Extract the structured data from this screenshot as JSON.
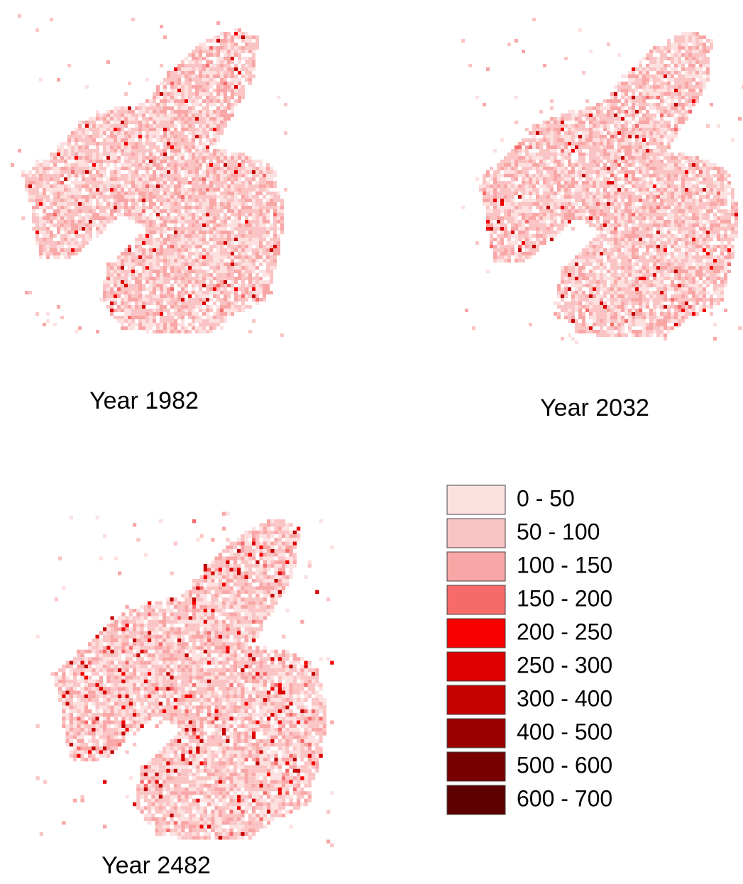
{
  "panels": [
    {
      "caption": "Year 1982"
    },
    {
      "caption": "Year 2032"
    },
    {
      "caption": "Year 2482"
    }
  ],
  "legend": [
    {
      "label": "0 - 50",
      "color": "#fde0e0"
    },
    {
      "label": "50 - 100",
      "color": "#fbc4c4"
    },
    {
      "label": "100 - 150",
      "color": "#f9a6a6"
    },
    {
      "label": "150 - 200",
      "color": "#f76a6a"
    },
    {
      "label": "200 - 250",
      "color": "#f80000"
    },
    {
      "label": "250 - 300",
      "color": "#de0000"
    },
    {
      "label": "300 - 400",
      "color": "#c40000"
    },
    {
      "label": "400 - 500",
      "color": "#990000"
    },
    {
      "label": "500 - 600",
      "color": "#780000"
    },
    {
      "label": "600 - 700",
      "color": "#5c0000"
    }
  ]
}
